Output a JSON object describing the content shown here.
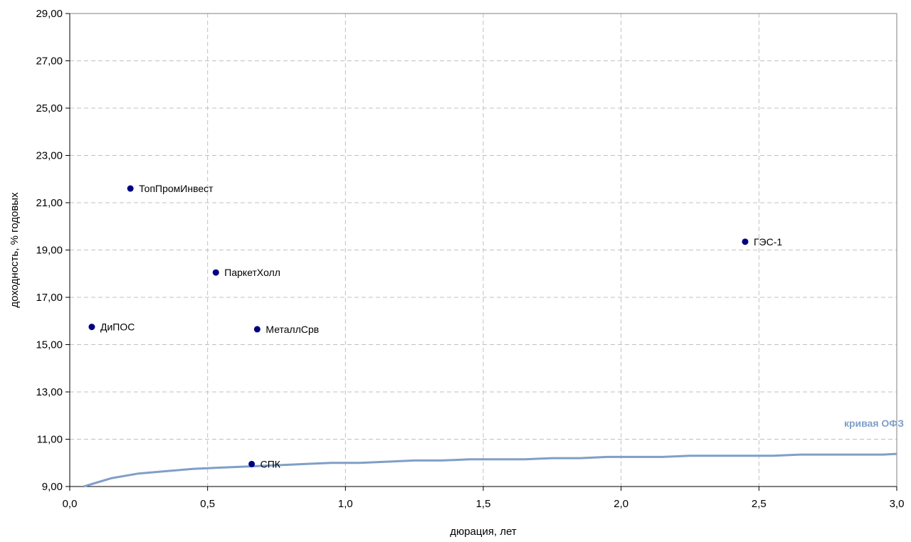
{
  "chart_data": {
    "type": "scatter",
    "xlabel": "дюрация, лет",
    "ylabel": "доходность, % годовых",
    "xlim": [
      0,
      3
    ],
    "ylim": [
      9,
      29
    ],
    "x_ticks": [
      {
        "value": 0,
        "label": "0,0"
      },
      {
        "value": 0.5,
        "label": "0,5"
      },
      {
        "value": 1,
        "label": "1,0"
      },
      {
        "value": 1.5,
        "label": "1,5"
      },
      {
        "value": 2,
        "label": "2,0"
      },
      {
        "value": 2.5,
        "label": "2,5"
      },
      {
        "value": 3,
        "label": "3,0"
      }
    ],
    "y_ticks": [
      {
        "value": 9,
        "label": "9,00"
      },
      {
        "value": 11,
        "label": "11,00"
      },
      {
        "value": 13,
        "label": "13,00"
      },
      {
        "value": 15,
        "label": "15,00"
      },
      {
        "value": 17,
        "label": "17,00"
      },
      {
        "value": 19,
        "label": "19,00"
      },
      {
        "value": 21,
        "label": "21,00"
      },
      {
        "value": 23,
        "label": "23,00"
      },
      {
        "value": 25,
        "label": "25,00"
      },
      {
        "value": 27,
        "label": "27,00"
      },
      {
        "value": 29,
        "label": "29,00"
      }
    ],
    "grid": true,
    "points": [
      {
        "label": "ТопПромИнвест",
        "x": 0.22,
        "y": 21.6
      },
      {
        "label": "ГЭС-1",
        "x": 2.45,
        "y": 19.35
      },
      {
        "label": "ПаркетХолл",
        "x": 0.53,
        "y": 18.05
      },
      {
        "label": "ДиПОС",
        "x": 0.08,
        "y": 15.75
      },
      {
        "label": "МеталлСрв",
        "x": 0.68,
        "y": 15.65
      },
      {
        "label": "СПК",
        "x": 0.66,
        "y": 9.95
      }
    ],
    "point_color": "#000080",
    "curve": {
      "label": "кривая ОФЗ",
      "color": "#7f9fc8",
      "x": [
        0.05,
        0.15,
        0.25,
        0.35,
        0.45,
        0.55,
        0.65,
        0.75,
        0.85,
        0.95,
        1.05,
        1.15,
        1.25,
        1.35,
        1.45,
        1.55,
        1.65,
        1.75,
        1.85,
        1.95,
        2.05,
        2.15,
        2.25,
        2.35,
        2.45,
        2.55,
        2.65,
        2.75,
        2.85,
        2.95,
        3.0
      ],
      "y": [
        9.0,
        9.35,
        9.55,
        9.65,
        9.75,
        9.8,
        9.85,
        9.9,
        9.95,
        10.0,
        10.0,
        10.05,
        10.1,
        10.1,
        10.15,
        10.15,
        10.15,
        10.2,
        10.2,
        10.25,
        10.25,
        10.25,
        10.3,
        10.3,
        10.3,
        10.3,
        10.35,
        10.35,
        10.35,
        10.35,
        10.38
      ]
    }
  }
}
